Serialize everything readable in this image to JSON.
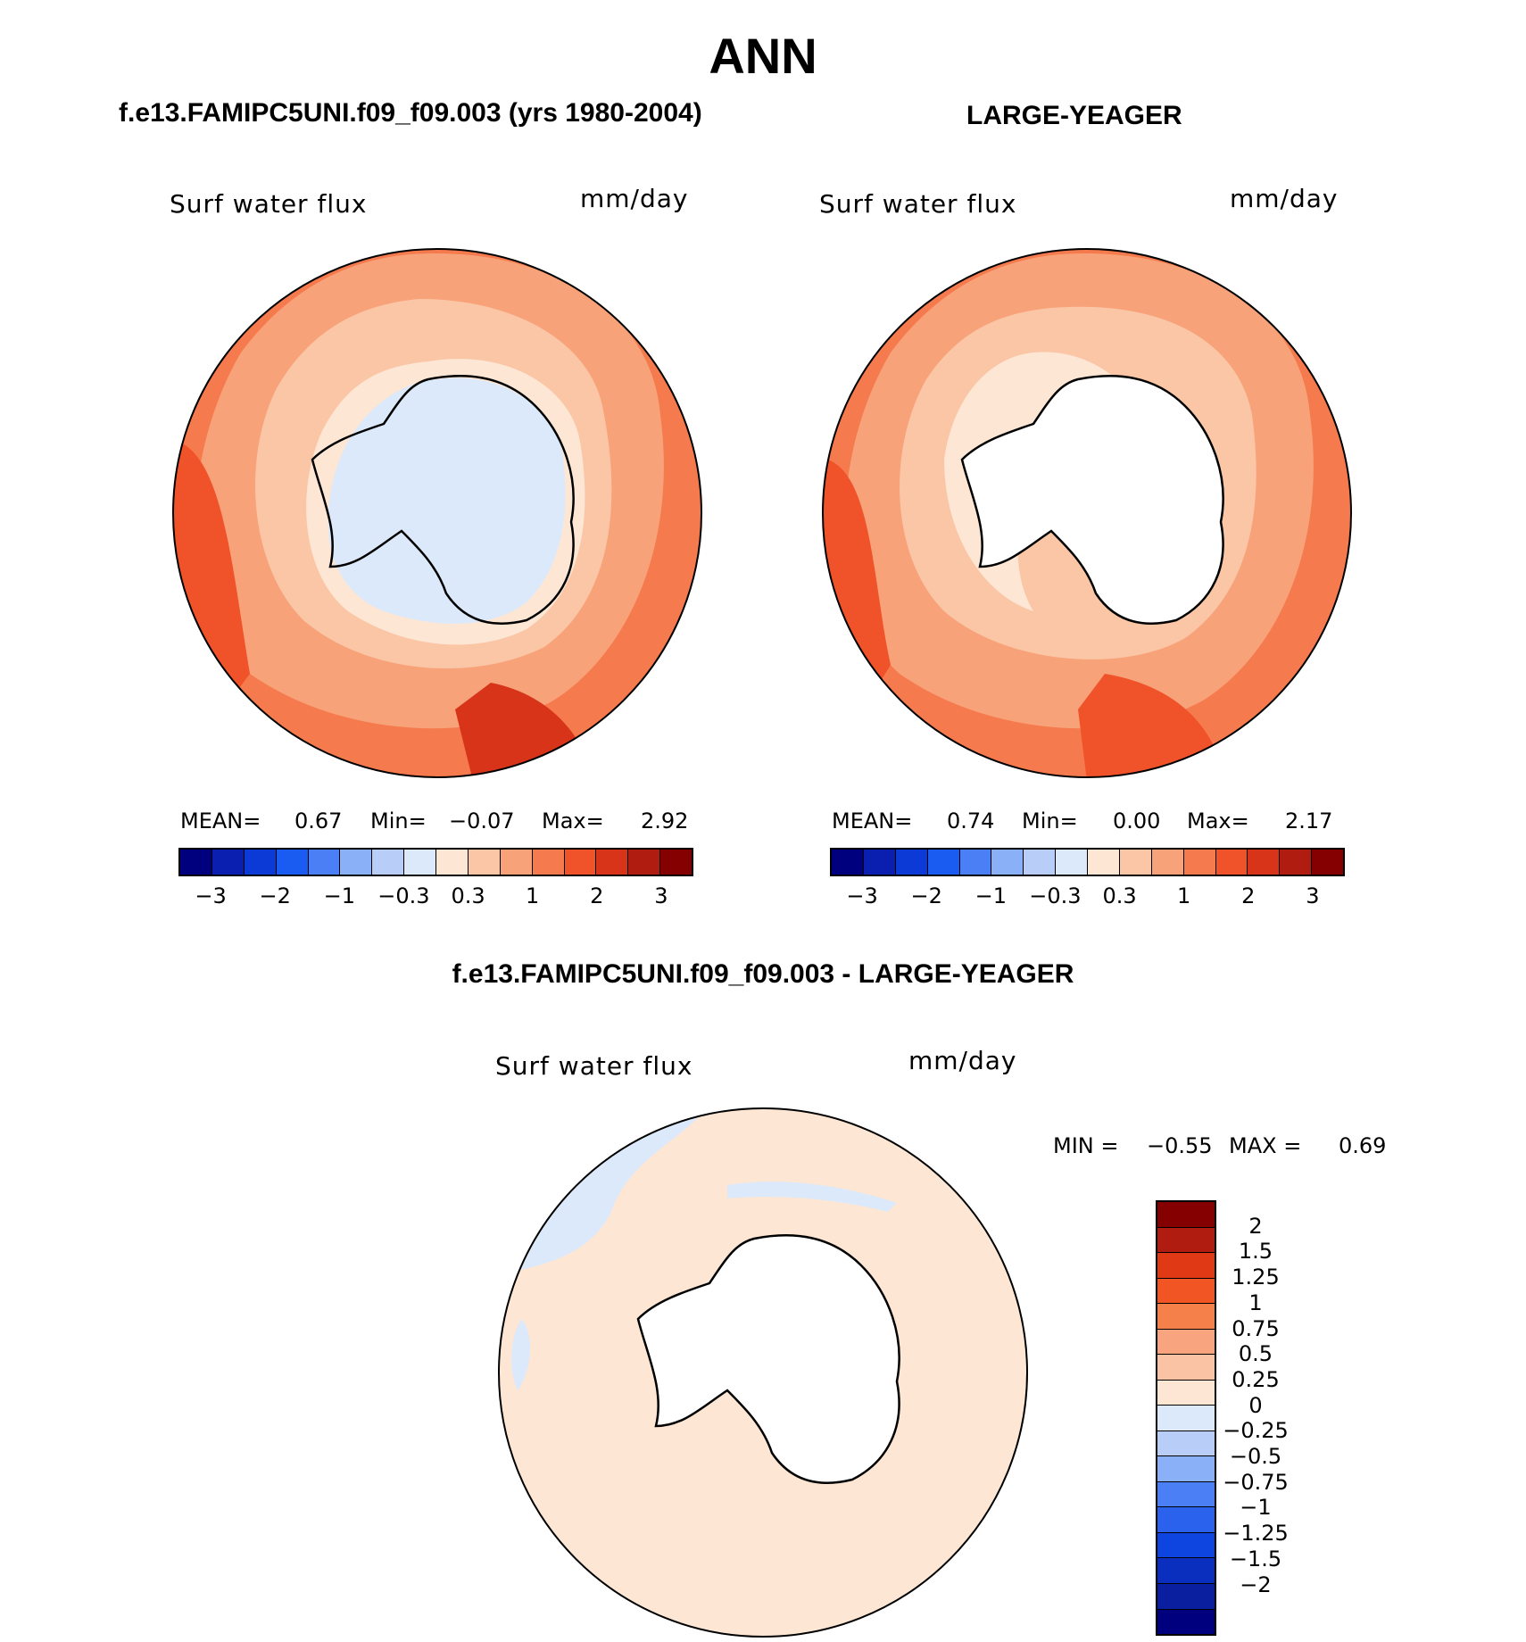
{
  "figure": {
    "title": "ANN"
  },
  "panels": [
    {
      "title": "f.e13.FAMIPC5UNI.f09_f09.003 (yrs 1980-2004)",
      "variable": "Surf water flux",
      "units": "mm/day",
      "stats": {
        "mean_label": "MEAN=",
        "mean": "0.67",
        "min_label": "Min=",
        "min": "−0.07",
        "max_label": "Max=",
        "max": "2.92"
      }
    },
    {
      "title": "LARGE-YEAGER",
      "variable": "Surf water flux",
      "units": "mm/day",
      "stats": {
        "mean_label": "MEAN=",
        "mean": "0.74",
        "min_label": "Min=",
        "min": "0.00",
        "max_label": "Max=",
        "max": "2.17"
      }
    },
    {
      "title": "f.e13.FAMIPC5UNI.f09_f09.003 - LARGE-YEAGER",
      "variable": "Surf water flux",
      "units": "mm/day",
      "stats": {
        "min_label": "MIN =",
        "min": "−0.55",
        "max_label": "MAX =",
        "max": "0.69"
      }
    }
  ],
  "colorbar_main": {
    "colors": [
      "#00007f",
      "#0a1fb0",
      "#0b3ad6",
      "#1a5cf2",
      "#4a7ff5",
      "#8ab0f8",
      "#b8cef9",
      "#dce9fb",
      "#fde6d4",
      "#fbc6a6",
      "#f8a27a",
      "#f57a4d",
      "#f0532a",
      "#d8341a",
      "#b01c10",
      "#850000"
    ],
    "ticks": [
      "−3",
      "−2",
      "−1",
      "−0.3",
      "0.3",
      "1",
      "2",
      "3"
    ]
  },
  "colorbar_diff": {
    "colors": [
      "#850000",
      "#b01c10",
      "#df3a15",
      "#f25524",
      "#f5804a",
      "#f8a57f",
      "#fac4a4",
      "#fde6d4",
      "#dce9fb",
      "#b8cef9",
      "#8ab0f8",
      "#4a7ff5",
      "#2a62ee",
      "#0e45e0",
      "#0a2fbf",
      "#0a1fa0",
      "#00007f"
    ],
    "ticks": [
      "2",
      "1.5",
      "1.25",
      "1",
      "0.75",
      "0.5",
      "0.25",
      "0",
      "−0.25",
      "−0.5",
      "−0.75",
      "−1",
      "−1.25",
      "−1.5",
      "−2"
    ]
  },
  "chart_data": {
    "type": "map",
    "projection": "polar stereographic (south pole)",
    "region": "Antarctica / Southern Ocean",
    "season": "ANN",
    "field": "Surf water flux",
    "units": "mm/day",
    "panels": [
      {
        "name": "f.e13.FAMIPC5UNI.f09_f09.003 (yrs 1980-2004)",
        "mean": 0.67,
        "min": -0.07,
        "max": 2.92
      },
      {
        "name": "LARGE-YEAGER",
        "mean": 0.74,
        "min": 0.0,
        "max": 2.17
      },
      {
        "name": "f.e13.FAMIPC5UNI.f09_f09.003 - LARGE-YEAGER",
        "min": -0.55,
        "max": 0.69
      }
    ],
    "contour_levels_main": [
      -3,
      -2.5,
      -2,
      -1.5,
      -1,
      -0.5,
      -0.3,
      0,
      0.3,
      0.5,
      1,
      1.5,
      2,
      2.5,
      3
    ],
    "contour_levels_diff": [
      -2,
      -1.5,
      -1.25,
      -1,
      -0.75,
      -0.5,
      -0.25,
      0,
      0.25,
      0.5,
      0.75,
      1,
      1.25,
      1.5,
      2
    ]
  }
}
